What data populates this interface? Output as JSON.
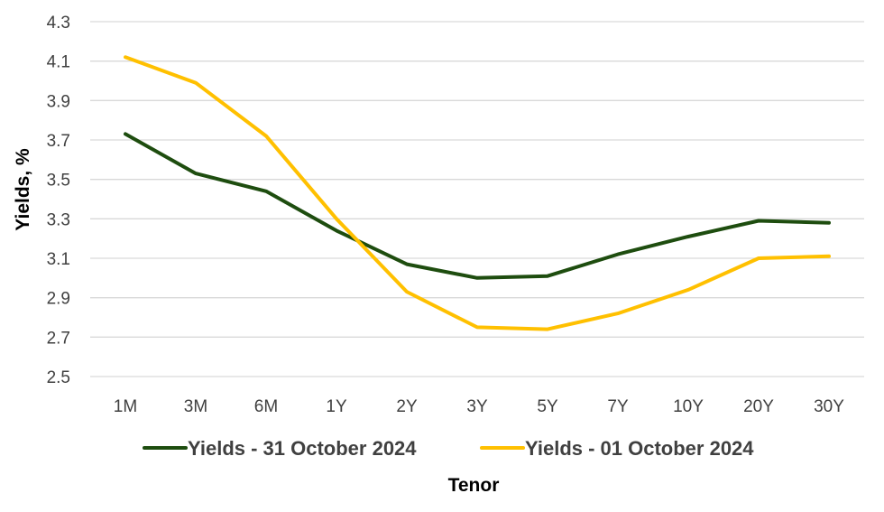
{
  "chart_data": {
    "type": "line",
    "title": "",
    "xlabel": "Tenor",
    "ylabel": "Yields, %",
    "categories": [
      "1M",
      "3M",
      "6M",
      "1Y",
      "2Y",
      "3Y",
      "5Y",
      "7Y",
      "10Y",
      "20Y",
      "30Y"
    ],
    "yticks": [
      "2.5",
      "2.7",
      "2.9",
      "3.1",
      "3.3",
      "3.5",
      "3.7",
      "3.9",
      "4.1",
      "4.3"
    ],
    "ylim": [
      2.5,
      4.3
    ],
    "grid": true,
    "legend_position": "bottom",
    "series": [
      {
        "name": "Yields - 31 October 2024",
        "color": "#1e4d0f",
        "values": [
          3.73,
          3.53,
          3.44,
          3.24,
          3.07,
          3.0,
          3.01,
          3.12,
          3.21,
          3.29,
          3.28
        ]
      },
      {
        "name": "Yields - 01 October 2024",
        "color": "#ffc000",
        "values": [
          4.12,
          3.99,
          3.72,
          3.3,
          2.93,
          2.75,
          2.74,
          2.82,
          2.94,
          3.1,
          3.11
        ]
      }
    ]
  }
}
